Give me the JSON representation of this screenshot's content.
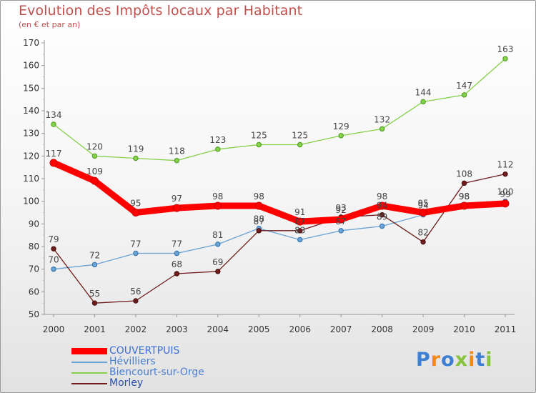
{
  "header": {
    "title": "Evolution des Impôts locaux par Habitant",
    "subtitle": "(en € et par an)"
  },
  "logo": {
    "text": "Proxiti"
  },
  "chart_data": {
    "type": "line",
    "title": "Evolution des Impôts locaux par Habitant",
    "subtitle": "(en € et par an)",
    "xlabel": "",
    "ylabel": "",
    "x": [
      "2000",
      "2001",
      "2002",
      "2003",
      "2004",
      "2005",
      "2006",
      "2007",
      "2008",
      "2009",
      "2010",
      "2011"
    ],
    "ylim": [
      50,
      170
    ],
    "yticks": [
      50,
      60,
      70,
      80,
      90,
      100,
      110,
      120,
      130,
      140,
      150,
      160,
      170
    ],
    "grid": false,
    "legend": "bottom-left",
    "series": [
      {
        "name": "COUVERTPUIS",
        "color": "#ff0000",
        "values": [
          117,
          109,
          95,
          97,
          98,
          98,
          91,
          92,
          98,
          95,
          98,
          99
        ]
      },
      {
        "name": "Hévilliers",
        "color": "#6aa3d6",
        "values": [
          70,
          72,
          77,
          77,
          81,
          88,
          83,
          87,
          89,
          94,
          98,
          100
        ]
      },
      {
        "name": "Biencourt-sur-Orge",
        "color": "#86d04a",
        "values": [
          134,
          120,
          119,
          118,
          123,
          125,
          125,
          129,
          132,
          144,
          147,
          163
        ]
      },
      {
        "name": "Morley",
        "color": "#6e1c1c",
        "values": [
          79,
          55,
          56,
          68,
          69,
          87,
          87,
          93,
          94,
          82,
          108,
          112
        ]
      }
    ]
  }
}
